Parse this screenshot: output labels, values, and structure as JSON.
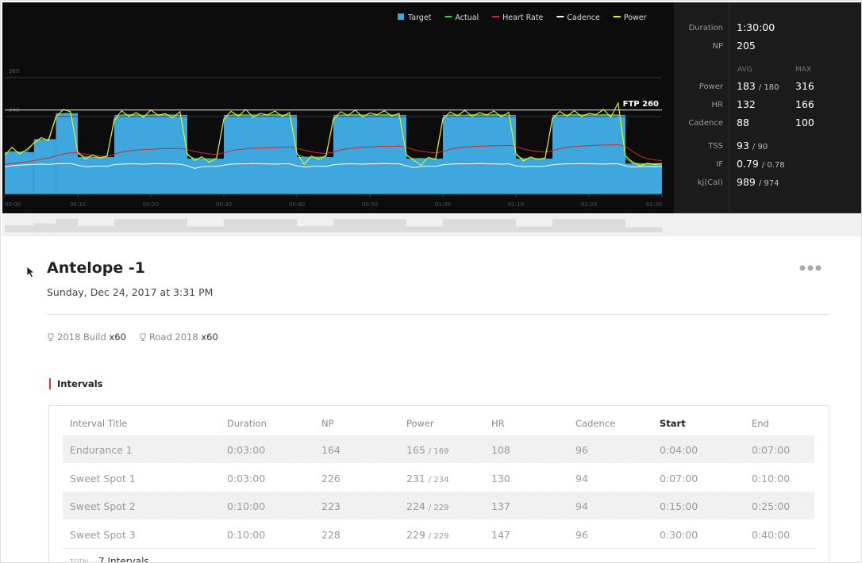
{
  "chart_data": {
    "type": "line",
    "xlim": [
      0,
      90
    ],
    "xticks": [
      {
        "value": 0,
        "label": "00:00"
      },
      {
        "value": 10,
        "label": "00:10"
      },
      {
        "value": 20,
        "label": "00:20"
      },
      {
        "value": 30,
        "label": "00:30"
      },
      {
        "value": 40,
        "label": "00:40"
      },
      {
        "value": 50,
        "label": "00:50"
      },
      {
        "value": 60,
        "label": "01:00"
      },
      {
        "value": 70,
        "label": "01:10"
      },
      {
        "value": 80,
        "label": "01:20"
      },
      {
        "value": 90,
        "label": "01:30"
      }
    ],
    "ylim": [
      0,
      585
    ],
    "yticks": [
      240,
      360
    ],
    "grid": true,
    "ftp": {
      "value": 260,
      "label": "FTP 260"
    },
    "x": [
      0,
      1,
      2,
      3,
      4,
      5,
      6,
      7,
      8,
      9,
      10,
      11,
      12,
      13,
      14,
      15,
      16,
      17,
      18,
      19,
      20,
      21,
      22,
      23,
      24,
      25,
      26,
      27,
      28,
      29,
      30,
      31,
      32,
      33,
      34,
      35,
      36,
      37,
      38,
      39,
      40,
      41,
      42,
      43,
      44,
      45,
      46,
      47,
      48,
      49,
      50,
      51,
      52,
      53,
      54,
      55,
      56,
      57,
      58,
      59,
      60,
      61,
      62,
      63,
      64,
      65,
      66,
      67,
      68,
      69,
      70,
      71,
      72,
      73,
      74,
      75,
      76,
      77,
      78,
      79,
      80,
      81,
      82,
      83,
      84,
      85,
      86,
      87,
      88,
      89,
      90
    ],
    "target": {
      "name": "Target",
      "color": "#3ea7dd",
      "starts": [
        0,
        4,
        7,
        10,
        15,
        25,
        30,
        40,
        45,
        55,
        60,
        70,
        75,
        85
      ],
      "ends": [
        4,
        7,
        10,
        15,
        25,
        30,
        40,
        45,
        55,
        60,
        70,
        75,
        85,
        90
      ],
      "values": [
        130,
        170,
        250,
        115,
        245,
        110,
        245,
        115,
        245,
        110,
        245,
        110,
        245,
        95
      ]
    },
    "series": [
      {
        "name": "Actual",
        "color": "#4cc94c",
        "values": [
          128,
          132,
          130,
          131,
          160,
          168,
          170,
          240,
          249,
          250,
          125,
          116,
          115,
          114,
          115,
          235,
          245,
          246,
          245,
          244,
          245,
          246,
          245,
          245,
          244,
          120,
          111,
          110,
          110,
          109,
          235,
          245,
          246,
          245,
          245,
          244,
          245,
          246,
          245,
          245,
          122,
          115,
          114,
          115,
          115,
          236,
          245,
          245,
          246,
          245,
          244,
          245,
          246,
          245,
          245,
          118,
          110,
          111,
          110,
          110,
          236,
          245,
          245,
          244,
          246,
          245,
          245,
          246,
          245,
          244,
          120,
          110,
          111,
          110,
          109,
          236,
          244,
          245,
          246,
          245,
          245,
          244,
          246,
          245,
          245,
          110,
          96,
          95,
          94,
          95,
          95
        ]
      },
      {
        "name": "Heart Rate",
        "color": "#d4282b",
        "values": [
          92,
          95,
          98,
          100,
          104,
          108,
          112,
          118,
          124,
          128,
          128,
          124,
          120,
          118,
          116,
          124,
          130,
          134,
          136,
          138,
          139,
          140,
          141,
          141,
          142,
          138,
          132,
          128,
          125,
          123,
          128,
          134,
          138,
          140,
          142,
          143,
          144,
          144,
          145,
          146,
          142,
          136,
          131,
          128,
          126,
          130,
          137,
          141,
          143,
          145,
          146,
          147,
          148,
          148,
          149,
          145,
          138,
          133,
          130,
          128,
          132,
          139,
          143,
          146,
          147,
          148,
          149,
          150,
          150,
          151,
          147,
          140,
          135,
          132,
          130,
          134,
          141,
          145,
          147,
          149,
          150,
          151,
          152,
          152,
          153,
          148,
          132,
          118,
          110,
          106,
          104
        ]
      },
      {
        "name": "Cadence",
        "color": "#ffffff",
        "values": [
          85,
          88,
          90,
          91,
          92,
          93,
          92,
          94,
          95,
          95,
          90,
          85,
          86,
          87,
          86,
          92,
          93,
          94,
          94,
          93,
          94,
          95,
          94,
          94,
          93,
          88,
          80,
          85,
          86,
          86,
          90,
          93,
          94,
          94,
          95,
          94,
          94,
          93,
          94,
          94,
          88,
          84,
          86,
          87,
          86,
          91,
          93,
          94,
          94,
          93,
          94,
          94,
          95,
          94,
          94,
          88,
          82,
          86,
          87,
          86,
          91,
          93,
          94,
          94,
          94,
          95,
          94,
          94,
          93,
          94,
          88,
          85,
          86,
          86,
          87,
          91,
          93,
          94,
          94,
          95,
          94,
          94,
          93,
          94,
          94,
          88,
          84,
          85,
          86,
          85,
          86
        ]
      },
      {
        "name": "Power",
        "color": "#f3ef2b",
        "values": [
          120,
          145,
          125,
          138,
          158,
          175,
          166,
          238,
          262,
          255,
          130,
          108,
          122,
          112,
          118,
          228,
          258,
          240,
          252,
          238,
          260,
          244,
          249,
          236,
          255,
          125,
          104,
          116,
          98,
          112,
          232,
          256,
          241,
          262,
          238,
          250,
          245,
          257,
          240,
          252,
          128,
          92,
          118,
          108,
          120,
          230,
          255,
          243,
          260,
          239,
          251,
          246,
          258,
          241,
          250,
          122,
          105,
          90,
          114,
          108,
          232,
          254,
          242,
          259,
          240,
          252,
          245,
          257,
          239,
          253,
          126,
          103,
          115,
          108,
          112,
          233,
          256,
          241,
          258,
          240,
          250,
          246,
          262,
          238,
          282,
          118,
          99,
          88,
          96,
          92,
          94
        ]
      }
    ]
  },
  "stats": {
    "duration": {
      "label": "Duration",
      "value": "1:30:00"
    },
    "np": {
      "label": "NP",
      "value": "205"
    },
    "avg_header": "AVG",
    "max_header": "MAX",
    "rows": [
      {
        "label": "Power",
        "avg": "183",
        "avg_sub": "/ 180",
        "max": "316"
      },
      {
        "label": "HR",
        "avg": "132",
        "max": "166"
      },
      {
        "label": "Cadence",
        "avg": "88",
        "max": "100"
      }
    ],
    "extra": [
      {
        "label": "TSS",
        "value": "93",
        "sub": "/ 90"
      },
      {
        "label": "IF",
        "value": "0.79",
        "sub": "/ 0.78"
      },
      {
        "label": "kj(Cal)",
        "value": "989",
        "sub": "/ 974"
      }
    ]
  },
  "header": {
    "title": "Antelope -1",
    "date": "Sunday, Dec 24, 2017 at 3:31 PM"
  },
  "tags": [
    {
      "name": "2018 Build",
      "count": "x60"
    },
    {
      "name": "Road 2018",
      "count": "x60"
    }
  ],
  "section": "Intervals",
  "table": {
    "headers": [
      "Interval Title",
      "Duration",
      "NP",
      "Power",
      "HR",
      "Cadence",
      "Start",
      "End"
    ],
    "rows": [
      {
        "title": "Endurance 1",
        "duration": "0:03:00",
        "np": "164",
        "power": "165",
        "power_sub": "/ 169",
        "hr": "108",
        "cadence": "96",
        "start": "0:04:00",
        "end": "0:07:00"
      },
      {
        "title": "Sweet Spot 1",
        "duration": "0:03:00",
        "np": "226",
        "power": "231",
        "power_sub": "/ 234",
        "hr": "130",
        "cadence": "94",
        "start": "0:07:00",
        "end": "0:10:00"
      },
      {
        "title": "Sweet Spot 2",
        "duration": "0:10:00",
        "np": "223",
        "power": "224",
        "power_sub": "/ 229",
        "hr": "137",
        "cadence": "94",
        "start": "0:15:00",
        "end": "0:25:00"
      },
      {
        "title": "Sweet Spot 3",
        "duration": "0:10:00",
        "np": "228",
        "power": "229",
        "power_sub": "/ 229",
        "hr": "147",
        "cadence": "96",
        "start": "0:30:00",
        "end": "0:40:00"
      }
    ],
    "footer": {
      "total_label": "TOTAL",
      "count": "7 Intervals"
    }
  }
}
